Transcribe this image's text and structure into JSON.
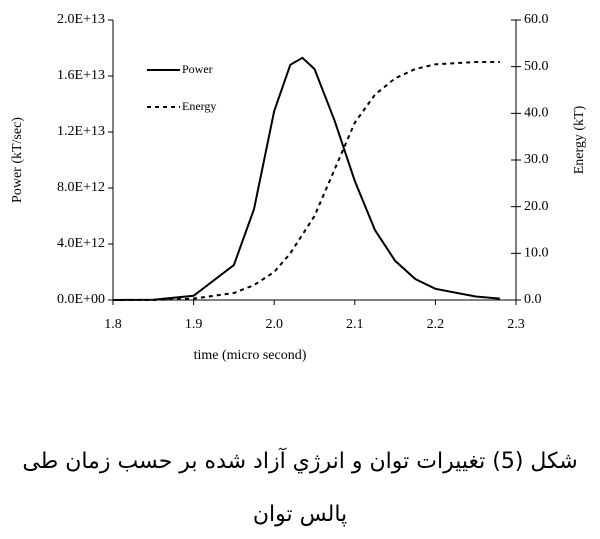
{
  "chart_data": {
    "type": "line",
    "x_label": "time (micro second)",
    "y_label": "Power (kT/sec)",
    "y2_label": "Energy (kT)",
    "x": [
      1.8,
      1.85,
      1.9,
      1.95,
      1.975,
      2.0,
      2.02,
      2.035,
      2.05,
      2.075,
      2.1,
      2.125,
      2.15,
      2.175,
      2.2,
      2.25,
      2.28
    ],
    "series": [
      {
        "name": "Power",
        "color": "#000000",
        "dash": false,
        "values": [
          0,
          20000000000,
          300000000000,
          2500000000000,
          6500000000000,
          13500000000000,
          16800000000000,
          17300000000000,
          16500000000000,
          12800000000000,
          8500000000000,
          5000000000000,
          2800000000000,
          1500000000000,
          800000000000,
          250000000000,
          100000000000
        ]
      },
      {
        "name": "Energy",
        "color": "#000000",
        "dash": true,
        "axis": "y2",
        "values": [
          0,
          0,
          0.3,
          1.5,
          3.2,
          6,
          10,
          14,
          18,
          28,
          38,
          44,
          47.5,
          49.5,
          50.5,
          51,
          51
        ]
      }
    ],
    "xlim": [
      1.8,
      2.3
    ],
    "xticks": [
      1.8,
      1.9,
      {
        "value": 2,
        "label": "2.0"
      },
      2.1,
      2.2,
      2.3
    ],
    "ylim": [
      0,
      20000000000000
    ],
    "yticks": [
      {
        "value": 0,
        "label": "0.0E+00"
      },
      {
        "value": 4000000000000,
        "label": "4.0E+12"
      },
      {
        "value": 8000000000000,
        "label": "8.0E+12"
      },
      {
        "value": 12000000000000,
        "label": "1.2E+13"
      },
      {
        "value": 16000000000000,
        "label": "1.6E+13"
      },
      {
        "value": 20000000000000,
        "label": "2.0E+13"
      }
    ],
    "y2lim": [
      0,
      60
    ],
    "y2ticks": [
      {
        "value": 0,
        "label": "0.0"
      },
      {
        "value": 10,
        "label": "10.0"
      },
      {
        "value": 20,
        "label": "20.0"
      },
      {
        "value": 30,
        "label": "30.0"
      },
      {
        "value": 40,
        "label": "40.0"
      },
      {
        "value": 50,
        "label": "50.0"
      },
      {
        "value": 60,
        "label": "60.0"
      }
    ],
    "legend": "upper-left",
    "caption": [
      "شکل (5) تغییرات توان و انرژي آزاد شده بر حسب زمان طی",
      "پالس توان"
    ]
  }
}
